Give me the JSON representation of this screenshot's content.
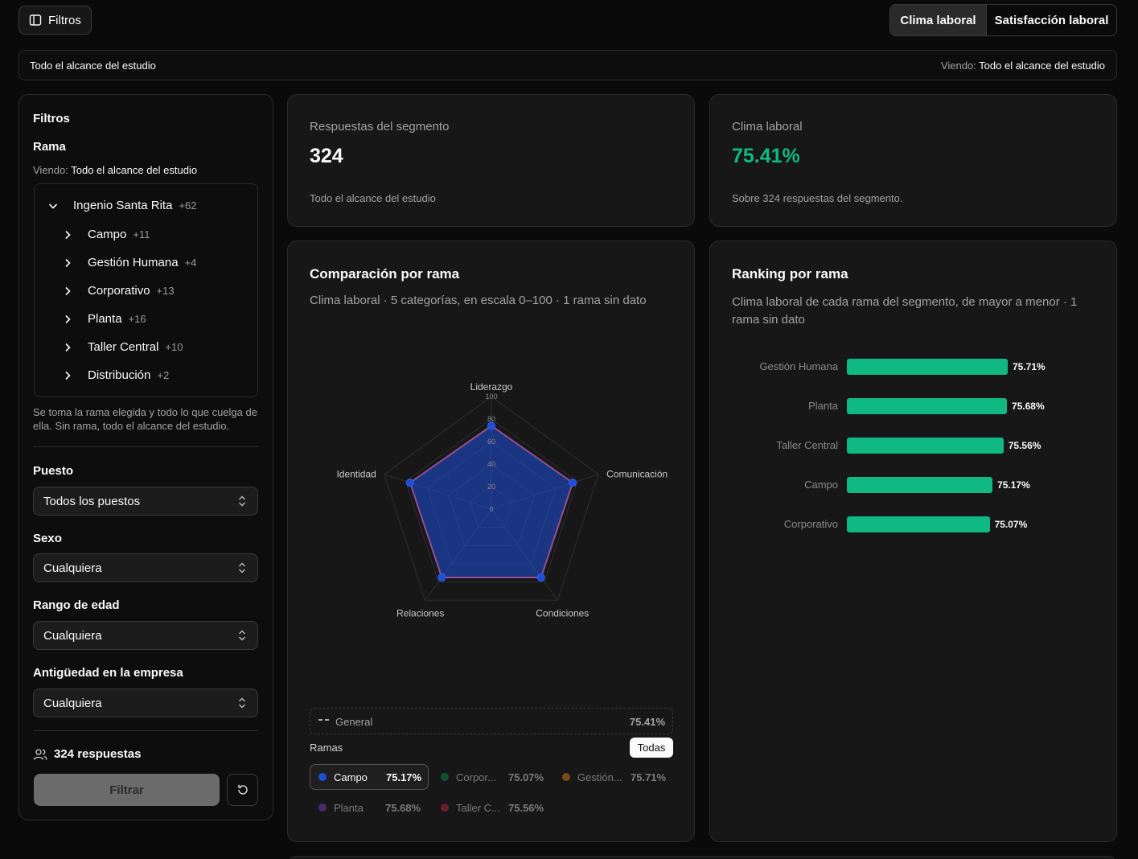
{
  "topbar": {
    "filters_button": "Filtros",
    "tabs": [
      "Clima laboral",
      "Satisfacción laboral"
    ],
    "active_tab": "Clima laboral"
  },
  "scope_bar": {
    "left": "Todo el alcance del estudio",
    "viewing_prefix": "Viendo:",
    "viewing_value": "Todo el alcance del estudio"
  },
  "sidebar": {
    "title": "Filtros",
    "rama_label": "Rama",
    "viewing_prefix": "Viendo:",
    "viewing_value": "Todo el alcance del estudio",
    "tree_root": {
      "label": "Ingenio Santa Rita",
      "count": "+62"
    },
    "tree_children": [
      {
        "label": "Campo",
        "count": "+11"
      },
      {
        "label": "Gestión Humana",
        "count": "+4"
      },
      {
        "label": "Corporativo",
        "count": "+13"
      },
      {
        "label": "Planta",
        "count": "+16"
      },
      {
        "label": "Taller Central",
        "count": "+10"
      },
      {
        "label": "Distribución",
        "count": "+2"
      }
    ],
    "help_text": "Se toma la rama elegida y todo lo que cuelga de ella. Sin rama, todo el alcance del estudio.",
    "puesto_label": "Puesto",
    "puesto_value": "Todos los puestos",
    "sexo_label": "Sexo",
    "sexo_value": "Cualquiera",
    "edad_label": "Rango de edad",
    "edad_value": "Cualquiera",
    "antiguedad_label": "Antigüedad en la empresa",
    "antiguedad_value": "Cualquiera",
    "responses": "324 respuestas",
    "filter_button": "Filtrar"
  },
  "kpi_responses": {
    "label": "Respuestas del segmento",
    "value": "324",
    "note": "Todo el alcance del estudio"
  },
  "kpi_climate": {
    "label": "Clima laboral",
    "value": "75.41%",
    "note": "Sobre 324 respuestas del segmento."
  },
  "radar_card": {
    "title": "Comparación por rama",
    "subtitle": "Clima laboral · 5 categorías, en escala 0–100 · 1 rama sin dato",
    "general_label": "General",
    "general_value": "75.41%",
    "ramas_label": "Ramas",
    "todas_button": "Todas"
  },
  "ranking_card": {
    "title": "Ranking por rama",
    "subtitle": "Clima laboral de cada rama del segmento, de mayor a menor · 1 rama sin dato"
  },
  "colors": {
    "accent_green": "#10b981",
    "radar_blue": "#1d4ed8",
    "campo": "#1d4ed8",
    "corporativo": "#0f5132",
    "gestion": "#7a4a14",
    "planta": "#4c2a6b",
    "taller": "#6b1f2a"
  },
  "chart_data": [
    {
      "type": "radar",
      "axes": [
        "Liderazgo",
        "Comunicación",
        "Condiciones",
        "Relaciones",
        "Identidad"
      ],
      "radial_ticks": [
        "0",
        "20",
        "40",
        "60",
        "80",
        "100"
      ],
      "rlim": [
        0,
        100
      ],
      "series": [
        {
          "name": "Campo",
          "values": [
            74,
            76,
            75,
            75,
            76
          ]
        }
      ],
      "legend": [
        {
          "name": "Campo",
          "value": "75.17%",
          "color": "#1d4ed8",
          "short": "Campo",
          "active": true
        },
        {
          "name": "Corporativo",
          "value": "75.07%",
          "color": "#0f5132",
          "short": "Corpor...",
          "active": false
        },
        {
          "name": "Gestión Humana",
          "value": "75.71%",
          "color": "#7a4a14",
          "short": "Gestión...",
          "active": false
        },
        {
          "name": "Planta",
          "value": "75.68%",
          "color": "#4c2a6b",
          "short": "Planta",
          "active": false
        },
        {
          "name": "Taller Central",
          "value": "75.56%",
          "color": "#6b1f2a",
          "short": "Taller C...",
          "active": false
        }
      ]
    },
    {
      "type": "bar",
      "orientation": "horizontal",
      "categories": [
        "Gestión Humana",
        "Planta",
        "Taller Central",
        "Campo",
        "Corporativo"
      ],
      "values": [
        75.71,
        75.68,
        75.56,
        75.17,
        75.07
      ],
      "value_labels": [
        "75.71%",
        "75.68%",
        "75.56%",
        "75.17%",
        "75.07%"
      ]
    }
  ]
}
